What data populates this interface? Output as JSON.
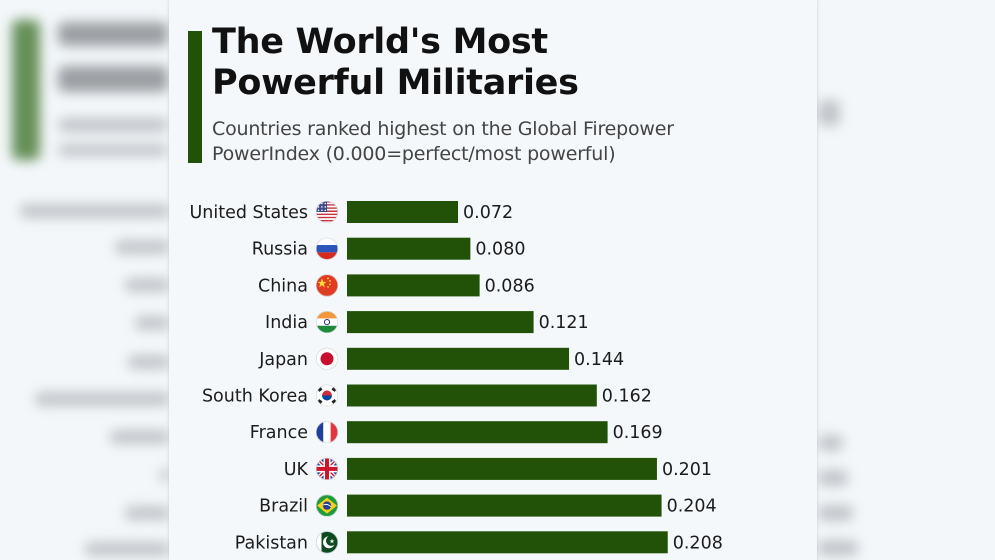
{
  "header": {
    "title": "The World's Most\nPowerful Militaries",
    "subtitle": "Countries ranked highest on the Global Firepower PowerIndex (0.000=perfect/most powerful)"
  },
  "colors": {
    "bar": "#215208",
    "accent": "#215208",
    "background": "#f4f8fb",
    "text": "#1c1c1c"
  },
  "chart_data": {
    "type": "bar",
    "orientation": "horizontal",
    "title": "The World's Most Powerful Militaries",
    "subtitle": "Countries ranked highest on the Global Firepower PowerIndex (0.000=perfect/most powerful)",
    "xlabel": "",
    "ylabel": "",
    "xlim": [
      0,
      0.25
    ],
    "grid": false,
    "legend": "none",
    "categories": [
      "United States",
      "Russia",
      "China",
      "India",
      "Japan",
      "South Korea",
      "France",
      "UK",
      "Brazil",
      "Pakistan"
    ],
    "flags": [
      "us-flag-icon",
      "russia-flag-icon",
      "china-flag-icon",
      "india-flag-icon",
      "japan-flag-icon",
      "south-korea-flag-icon",
      "france-flag-icon",
      "uk-flag-icon",
      "brazil-flag-icon",
      "pakistan-flag-icon"
    ],
    "values": [
      0.072,
      0.08,
      0.086,
      0.121,
      0.144,
      0.162,
      0.169,
      0.201,
      0.204,
      0.208
    ],
    "value_labels": [
      "0.072",
      "0.080",
      "0.086",
      "0.121",
      "0.144",
      "0.162",
      "0.169",
      "0.201",
      "0.204",
      "0.208"
    ]
  }
}
